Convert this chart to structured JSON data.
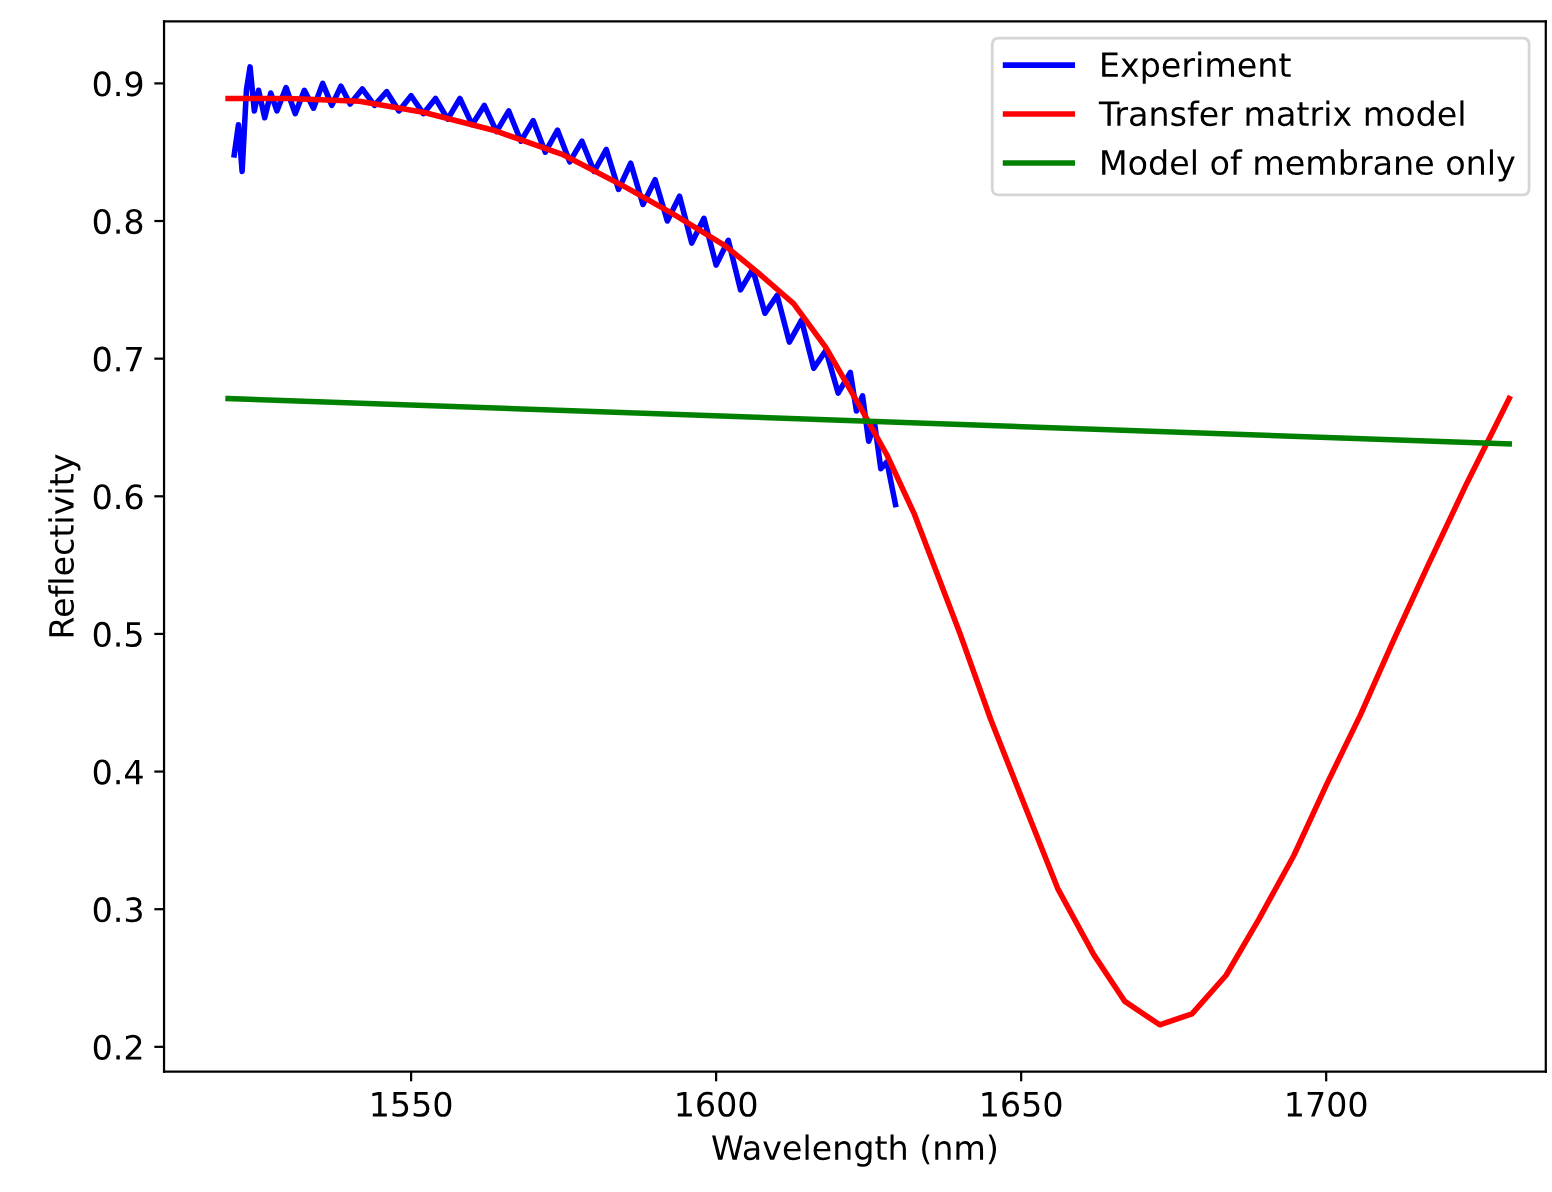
{
  "chart_data": {
    "type": "line",
    "xlabel": "Wavelength (nm)",
    "ylabel": "Reflectivity",
    "xlim": [
      1509.5,
      1736
    ],
    "ylim": [
      0.182,
      0.945
    ],
    "xticks": [
      1550,
      1600,
      1650,
      1700
    ],
    "yticks": [
      0.2,
      0.3,
      0.4,
      0.5,
      0.6,
      0.7,
      0.8,
      0.9
    ],
    "grid": false,
    "legend": "top right",
    "series": [
      {
        "name": "Experiment",
        "color": "#0000ff",
        "x": [
          1521,
          1521.7,
          1522.3,
          1523,
          1523.6,
          1524.3,
          1525,
          1526,
          1527,
          1528,
          1529.5,
          1531,
          1532.5,
          1534,
          1535.5,
          1537,
          1538.5,
          1540,
          1542,
          1544,
          1546,
          1548,
          1550,
          1552,
          1554,
          1556,
          1558,
          1560,
          1562,
          1564,
          1566,
          1568,
          1570,
          1572,
          1574,
          1576,
          1578,
          1580,
          1582,
          1584,
          1586,
          1588,
          1590,
          1592,
          1594,
          1596,
          1598,
          1600,
          1602,
          1604,
          1606,
          1608,
          1610,
          1612,
          1614,
          1616,
          1618,
          1620,
          1622,
          1623,
          1624,
          1625,
          1626,
          1627,
          1628,
          1629.4
        ],
        "values": [
          0.848,
          0.87,
          0.836,
          0.895,
          0.912,
          0.88,
          0.895,
          0.875,
          0.893,
          0.88,
          0.897,
          0.878,
          0.895,
          0.882,
          0.9,
          0.884,
          0.898,
          0.885,
          0.896,
          0.884,
          0.894,
          0.88,
          0.891,
          0.878,
          0.889,
          0.874,
          0.889,
          0.87,
          0.884,
          0.865,
          0.88,
          0.858,
          0.873,
          0.85,
          0.866,
          0.843,
          0.858,
          0.836,
          0.852,
          0.823,
          0.842,
          0.812,
          0.83,
          0.8,
          0.818,
          0.784,
          0.802,
          0.768,
          0.786,
          0.75,
          0.765,
          0.733,
          0.746,
          0.712,
          0.728,
          0.693,
          0.706,
          0.675,
          0.69,
          0.662,
          0.673,
          0.64,
          0.652,
          0.62,
          0.625,
          0.594
        ]
      },
      {
        "name": "Transfer matrix model",
        "color": "#ff0000",
        "x": [
          1520,
          1530,
          1541.5,
          1552,
          1563.5,
          1575,
          1585,
          1593,
          1601.5,
          1607,
          1612.7,
          1618,
          1623.6,
          1628,
          1632.5,
          1640,
          1645,
          1650.7,
          1656,
          1661.9,
          1667,
          1672.7,
          1678,
          1683.6,
          1689,
          1694.7,
          1700,
          1705.6,
          1711,
          1716.5,
          1723,
          1730
        ],
        "values": [
          0.889,
          0.889,
          0.887,
          0.879,
          0.866,
          0.848,
          0.825,
          0.805,
          0.782,
          0.762,
          0.74,
          0.708,
          0.665,
          0.63,
          0.587,
          0.5,
          0.438,
          0.374,
          0.315,
          0.267,
          0.233,
          0.216,
          0.224,
          0.252,
          0.293,
          0.339,
          0.39,
          0.441,
          0.495,
          0.548,
          0.609,
          0.671
        ]
      },
      {
        "name": "Model of membrane only",
        "color": "#008000",
        "x": [
          1520,
          1730
        ],
        "values": [
          0.671,
          0.638
        ]
      }
    ]
  }
}
